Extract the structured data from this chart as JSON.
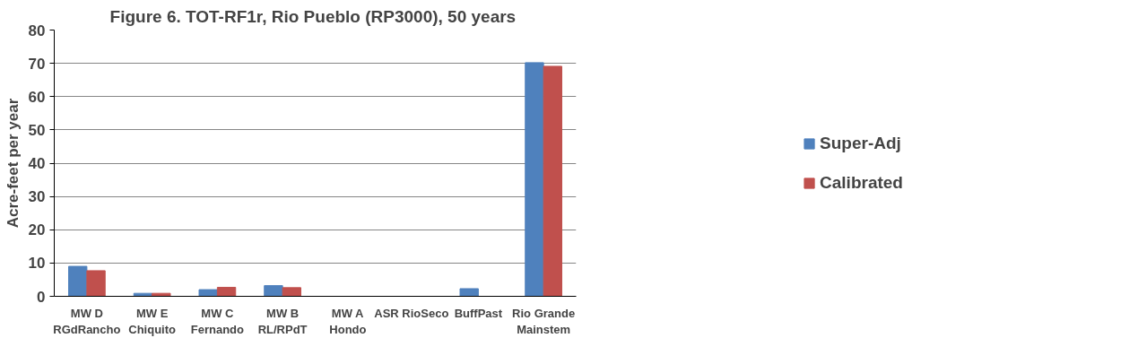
{
  "chart_data": {
    "type": "bar",
    "title": "Figure 6.  TOT-RF1r, Rio Pueblo (RP3000), 50 years",
    "ylabel": "Acre-feet per year",
    "categories": [
      "MW D\nRGdRancho",
      "MW E\nChiquito",
      "MW C\nFernando",
      "MW B\nRL/RPdT",
      "MW A\nHondo",
      "ASR  RioSeco",
      "BuffPast",
      "Rio Grande\nMainstem"
    ],
    "series": [
      {
        "name": "Super-Adj",
        "color": "#4f81bd",
        "values": [
          9.0,
          0.9,
          2.0,
          3.2,
          0,
          0,
          2.3,
          70.2
        ]
      },
      {
        "name": "Calibrated",
        "color": "#c0504d",
        "values": [
          7.7,
          0.9,
          2.7,
          2.6,
          0,
          0,
          0,
          69.1
        ]
      }
    ],
    "ylim": [
      0,
      80
    ],
    "yticks": [
      0,
      10,
      20,
      30,
      40,
      50,
      60,
      70,
      80
    ],
    "grid": "y",
    "legend": "right"
  }
}
